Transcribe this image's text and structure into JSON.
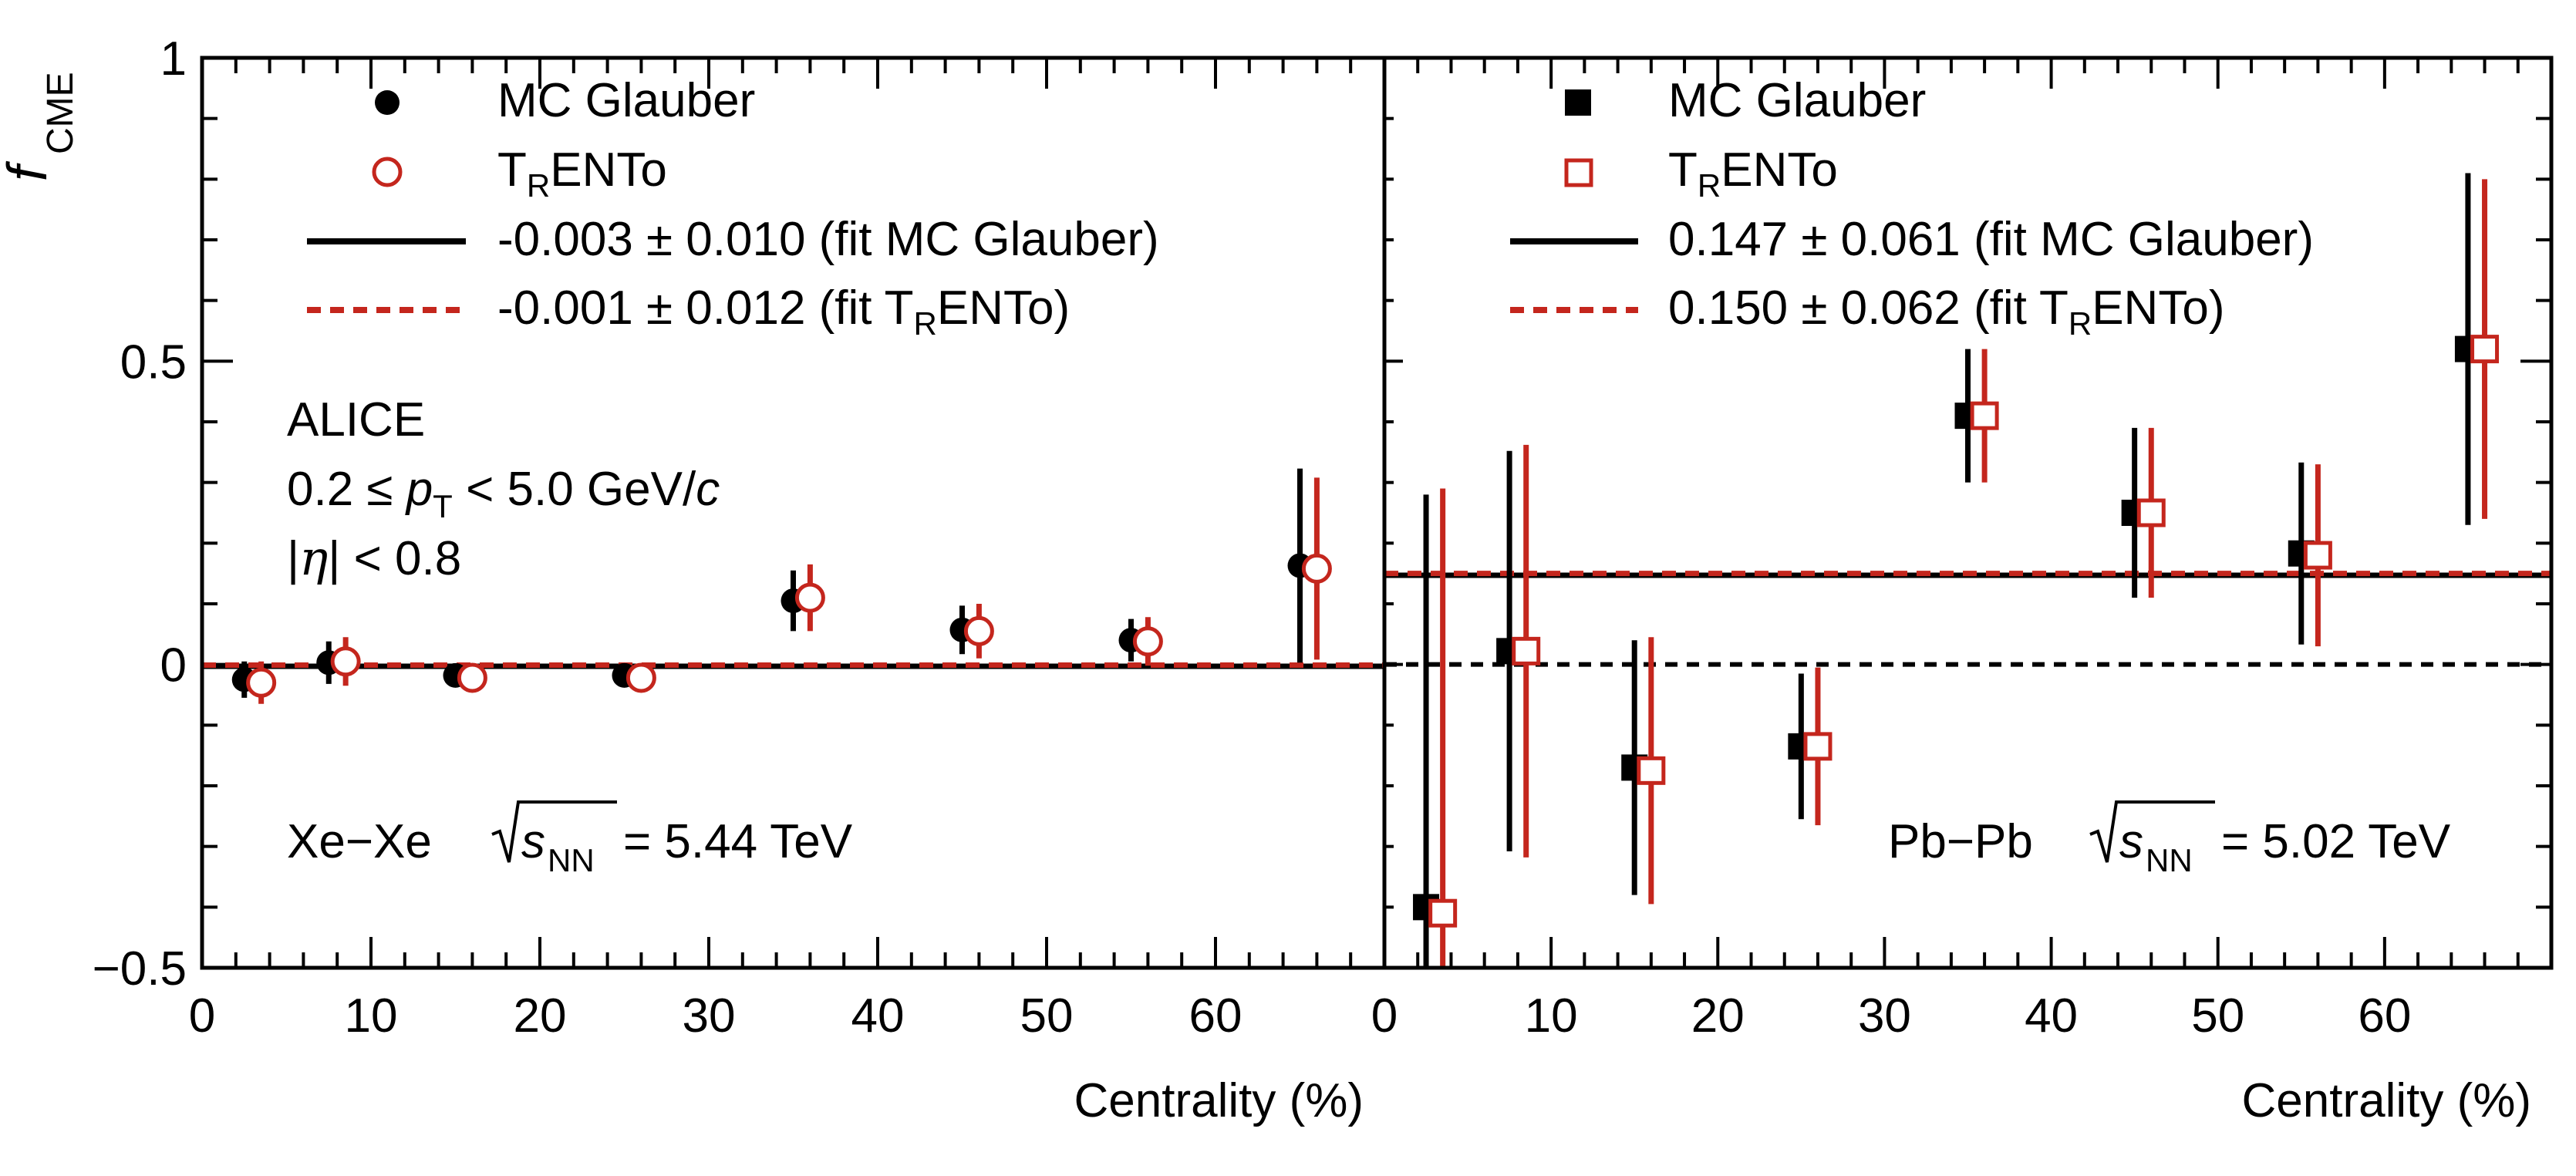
{
  "colors": {
    "black": "#000000",
    "red": "#c4261d"
  },
  "chart_data": [
    {
      "type": "scatter",
      "panel": "left",
      "system": "Xe−Xe",
      "energy": "= 5.44 TeV",
      "experiment": "ALICE",
      "cuts": {
        "pt_lo": "0.2 ≤",
        "pt_var": "p",
        "pt_sub": "T",
        "pt_hi": "< 5.0 GeV/",
        "pt_unit": "c",
        "eta_open": "|",
        "eta_var": "η",
        "eta_close": "| < 0.8"
      },
      "ylabel": "f",
      "ylabel_sub": "CME",
      "xlabel": "Centrality (%)",
      "xlim": [
        0,
        70
      ],
      "ylim": [
        -0.5,
        1
      ],
      "xticks": [
        "0",
        "10",
        "20",
        "30",
        "40",
        "50",
        "60"
      ],
      "yticks": [
        "1",
        "0.5",
        "0",
        "−0.5"
      ],
      "legend": {
        "s1": "MC Glauber",
        "s2_a": "T",
        "s2_sub": "R",
        "s2_b": "ENTo",
        "fit1": "-0.003 ± 0.010 (fit MC Glauber)",
        "fit2_a": "-0.001 ± 0.012 (fit T",
        "fit2_sub": "R",
        "fit2_b": "ENTo)"
      },
      "fit_values": [
        -0.003,
        -0.001
      ],
      "series": [
        {
          "name": "MC Glauber",
          "marker": "filled-circle",
          "x": [
            2.5,
            7.5,
            15,
            25,
            35,
            45,
            55,
            65
          ],
          "y": [
            -0.025,
            0.003,
            -0.018,
            -0.018,
            0.105,
            0.057,
            0.04,
            0.163
          ],
          "err": [
            0.03,
            0.035,
            0.01,
            0.01,
            0.05,
            0.04,
            0.035,
            0.16
          ]
        },
        {
          "name": "TRENTo",
          "marker": "open-circle",
          "x": [
            3.5,
            8.5,
            16,
            26,
            36,
            46,
            56,
            66
          ],
          "y": [
            -0.03,
            0.005,
            -0.022,
            -0.022,
            0.11,
            0.055,
            0.038,
            0.158
          ],
          "err": [
            0.035,
            0.04,
            0.012,
            0.012,
            0.055,
            0.045,
            0.04,
            0.15
          ]
        }
      ]
    },
    {
      "type": "scatter",
      "panel": "right",
      "system": "Pb−Pb",
      "energy": "= 5.02 TeV",
      "xlabel": "Centrality (%)",
      "xlim": [
        0,
        70
      ],
      "ylim": [
        -0.5,
        1
      ],
      "xticks": [
        "0",
        "10",
        "20",
        "30",
        "40",
        "50",
        "60"
      ],
      "legend": {
        "s1": "MC Glauber",
        "s2_a": "T",
        "s2_sub": "R",
        "s2_b": "ENTo",
        "fit1": "0.147 ± 0.061 (fit MC Glauber)",
        "fit2_a": "0.150 ± 0.062 (fit T",
        "fit2_sub": "R",
        "fit2_b": "ENTo)"
      },
      "fit_values": [
        0.147,
        0.15
      ],
      "reference_line": 0,
      "series": [
        {
          "name": "MC Glauber",
          "marker": "filled-square",
          "x": [
            2.5,
            7.5,
            15,
            25,
            35,
            45,
            55,
            65
          ],
          "y": [
            -0.4,
            0.022,
            -0.17,
            -0.135,
            0.41,
            0.25,
            0.183,
            0.52
          ],
          "err": [
            0.68,
            0.33,
            0.21,
            0.12,
            0.11,
            0.14,
            0.15,
            0.29
          ]
        },
        {
          "name": "TRENTo",
          "marker": "open-square",
          "x": [
            3.5,
            8.5,
            16,
            26,
            36,
            46,
            56,
            66
          ],
          "y": [
            -0.41,
            0.022,
            -0.175,
            -0.135,
            0.41,
            0.25,
            0.18,
            0.52
          ],
          "err": [
            0.7,
            0.34,
            0.22,
            0.13,
            0.11,
            0.14,
            0.15,
            0.28
          ]
        }
      ]
    }
  ]
}
